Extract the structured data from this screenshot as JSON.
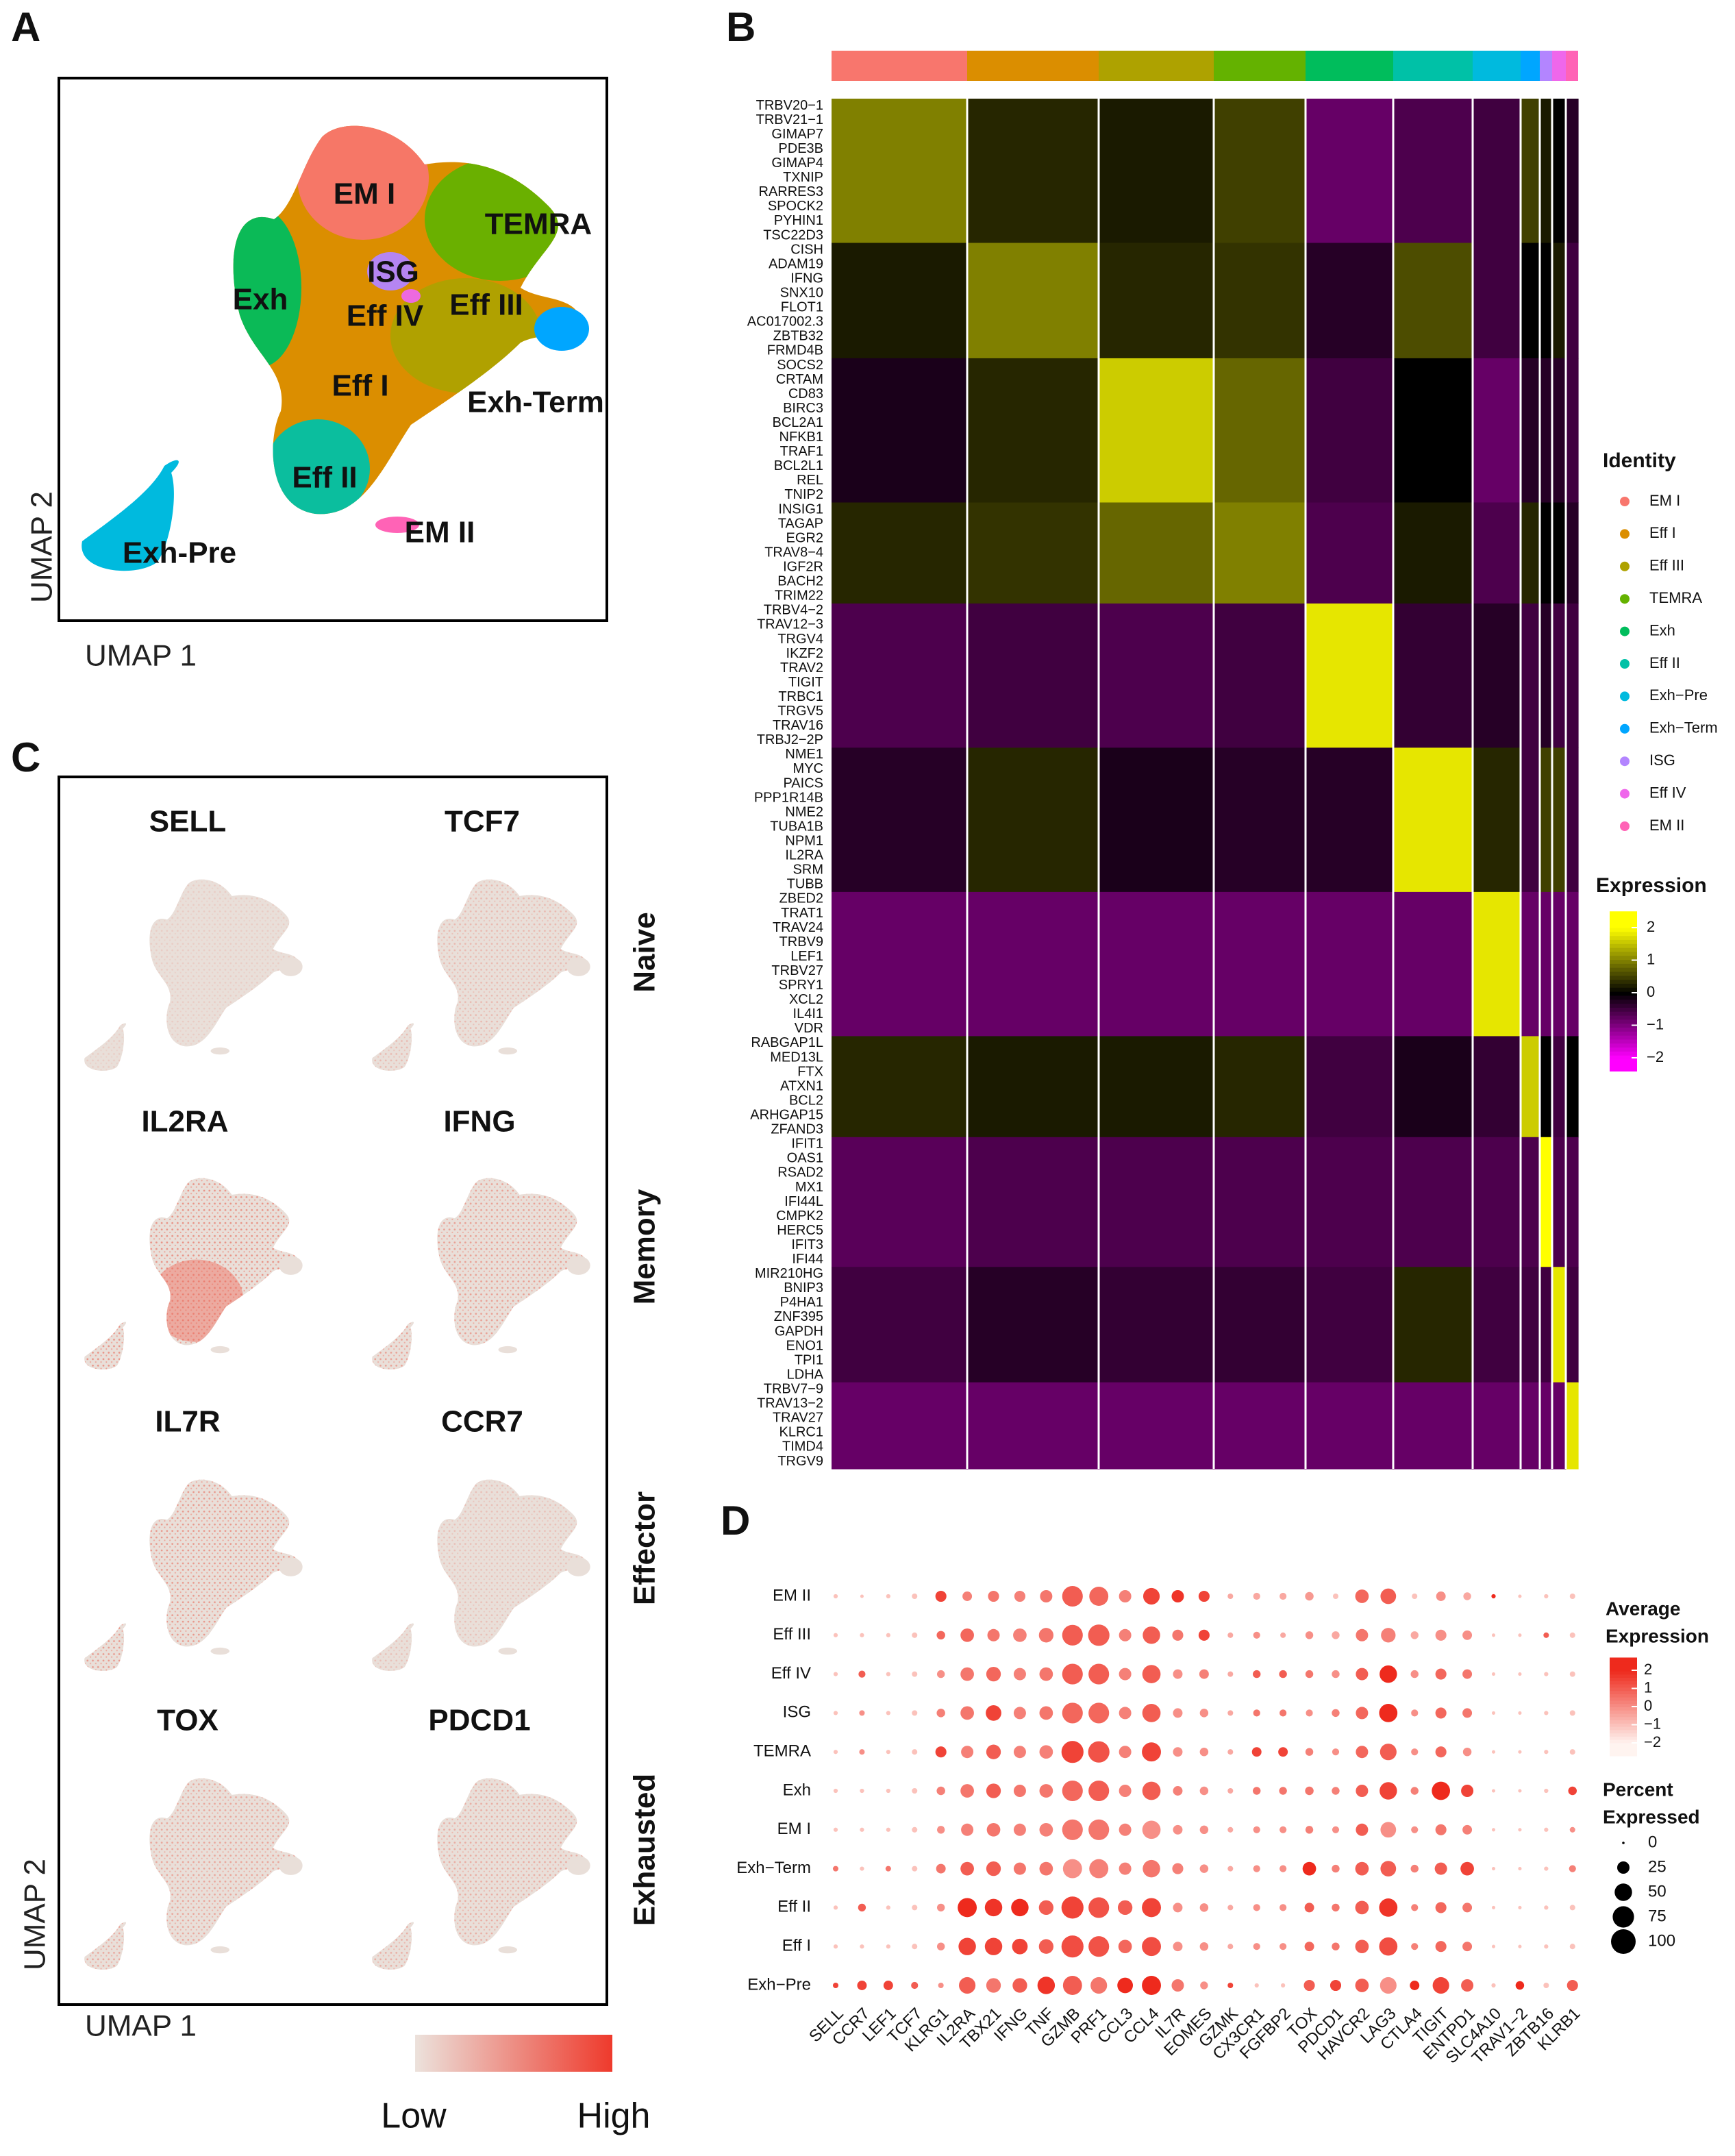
{
  "panels": [
    "A",
    "B",
    "C",
    "D"
  ],
  "umap": {
    "clusters": [
      "EM I",
      "TEMRA",
      "ISG",
      "Exh",
      "Eff IV",
      "Eff III",
      "Eff I",
      "Exh-Term",
      "Eff II",
      "EM II",
      "Exh-Pre"
    ],
    "x_label": "UMAP 1",
    "y_label": "UMAP 2"
  },
  "heatmap": {
    "clusters": [
      "EM I",
      "Eff I",
      "Eff III",
      "TEMRA",
      "Exh",
      "Eff II",
      "Exh−Pre",
      "Exh−Term",
      "ISG",
      "Eff IV",
      "EM II"
    ],
    "colors": [
      "#F8766D",
      "#DB8E00",
      "#AEA200",
      "#64B200",
      "#00BD5C",
      "#00C1A7",
      "#00BADE",
      "#00A6FF",
      "#B385FF",
      "#EF67EB",
      "#FF63B6"
    ],
    "cells": [
      99,
      96,
      84,
      67,
      64,
      58,
      35,
      14,
      9,
      10,
      9
    ],
    "gene_groups": [
      [
        "TRBV20−1",
        "TRBV21−1",
        "GIMAP7",
        "PDE3B",
        "GIMAP4",
        "TXNIP",
        "RARRES3",
        "SPOCK2",
        "PYHIN1",
        "TSC22D3"
      ],
      [
        "CISH",
        "ADAM19",
        "IFNG",
        "SNX10",
        "FLOT1",
        "AC017002.3",
        "ZBTB32",
        "FRMD4B"
      ],
      [
        "SOCS2",
        "CRTAM",
        "CD83",
        "BIRC3",
        "BCL2A1",
        "NFKB1",
        "TRAF1",
        "BCL2L1",
        "REL",
        "TNIP2"
      ],
      [
        "INSIG1",
        "TAGAP",
        "EGR2",
        "TRAV8−4",
        "IGF2R",
        "BACH2",
        "TRIM22"
      ],
      [
        "TRBV4−2",
        "TRAV12−3",
        "TRGV4",
        "IKZF2",
        "TRAV2",
        "TIGIT",
        "TRBC1",
        "TRGV5",
        "TRAV16",
        "TRBJ2−2P"
      ],
      [
        "NME1",
        "MYC",
        "PAICS",
        "PPP1R14B",
        "NME2",
        "TUBA1B",
        "NPM1",
        "IL2RA",
        "SRM",
        "TUBB"
      ],
      [
        "ZBED2",
        "TRAT1",
        "TRAV24",
        "TRBV9",
        "LEF1",
        "TRBV27",
        "SPRY1",
        "XCL2",
        "IL4I1",
        "VDR"
      ],
      [
        "RABGAP1L",
        "MED13L",
        "FTX",
        "ATXN1",
        "BCL2",
        "ARHGAP15",
        "ZFAND3"
      ],
      [
        "IFIT1",
        "OAS1",
        "RSAD2",
        "MX1",
        "IFI44L",
        "CMPK2",
        "HERC5",
        "IFIT3",
        "IFI44"
      ],
      [
        "MIR210HG",
        "BNIP3",
        "P4HA1",
        "ZNF395",
        "GAPDH",
        "ENO1",
        "TPI1",
        "LDHA"
      ],
      [
        "TRBV7−9",
        "TRAV13−2",
        "TRAV27",
        "KLRC1",
        "TIMD4",
        "TRGV9"
      ]
    ],
    "expression": [
      [
        1.0,
        0.3,
        0.2,
        0.5,
        -0.8,
        -0.6,
        -0.5,
        0.5,
        0.2,
        0,
        -0.3
      ],
      [
        0.2,
        1.0,
        0.3,
        0.4,
        -0.3,
        0.6,
        -0.5,
        0,
        0,
        0.2,
        -0.5
      ],
      [
        -0.2,
        0.3,
        1.6,
        0.8,
        -0.5,
        0,
        -0.8,
        -0.3,
        -0.3,
        -0.3,
        -0.5
      ],
      [
        0.3,
        0.4,
        0.8,
        1.0,
        -0.6,
        0.2,
        -0.6,
        0.3,
        0,
        0,
        -0.3
      ],
      [
        -0.6,
        -0.5,
        -0.6,
        -0.5,
        1.8,
        -0.4,
        -0.3,
        -0.5,
        -0.3,
        -0.5,
        -0.5
      ],
      [
        -0.3,
        0.3,
        -0.2,
        -0.3,
        -0.3,
        1.8,
        0.3,
        -0.5,
        0.5,
        0.5,
        -0.5
      ],
      [
        -0.8,
        -0.8,
        -0.8,
        -0.8,
        -0.8,
        -0.8,
        1.8,
        -0.8,
        -0.8,
        -0.8,
        -0.8
      ],
      [
        0.3,
        0.2,
        0.2,
        0.3,
        -0.5,
        -0.2,
        -0.4,
        1.6,
        0,
        -0.5,
        0
      ],
      [
        -0.7,
        -0.6,
        -0.6,
        -0.6,
        -0.6,
        -0.6,
        -0.6,
        -0.6,
        2,
        -0.6,
        -0.6
      ],
      [
        -0.5,
        -0.3,
        -0.4,
        -0.4,
        -0.5,
        0.3,
        -0.5,
        -0.5,
        -0.5,
        1.8,
        -0.5
      ],
      [
        -0.8,
        -0.8,
        -0.8,
        -0.8,
        -0.8,
        -0.8,
        -0.8,
        -0.8,
        -0.8,
        -0.8,
        1.8
      ]
    ],
    "legend_title": "Identity",
    "scale_title": "Expression",
    "scale_lim": [
      -2.4,
      2.5
    ],
    "scale_ticks": [
      2,
      1,
      0,
      {
        "value": -1,
        "label": "−1"
      },
      {
        "value": -2,
        "label": "−2"
      }
    ]
  },
  "features": {
    "genes": [
      "SELL",
      "TCF7",
      "IL2RA",
      "IFNG",
      "IL7R",
      "CCR7",
      "TOX",
      "PDCD1"
    ],
    "categories": [
      "Naive",
      "Memory",
      "Effector",
      "Exhausted"
    ],
    "x_label": "UMAP 1",
    "y_label": "UMAP 2",
    "scale_low": "Low",
    "scale_high": "High"
  },
  "dotplot": {
    "rows": [
      "EM II",
      "Eff III",
      "Eff IV",
      "ISG",
      "TEMRA",
      "Exh",
      "EM I",
      "Exh−Term",
      "Eff II",
      "Eff I",
      "Exh−Pre"
    ],
    "columns": [
      "SELL",
      "CCR7",
      "LEF1",
      "TCF7",
      "KLRG1",
      "IL2RA",
      "TBX21",
      "IFNG",
      "TNF",
      "GZMB",
      "PRF1",
      "CCL3",
      "CCL4",
      "IL7R",
      "EOMES",
      "GZMK",
      "CX3CR1",
      "FGFBP2",
      "TOX",
      "PDCD1",
      "HAVCR2",
      "LAG3",
      "CTLA4",
      "TIGIT",
      "ENTPD1",
      "SLC4A10",
      "TRAV1−2",
      "ZBTB16",
      "KLRB1"
    ],
    "avg_expression": [
      [
        -1,
        -1,
        -1,
        -1,
        1.5,
        0.3,
        0.5,
        0.3,
        0.5,
        1,
        0.8,
        0.3,
        1.5,
        1.8,
        1.5,
        -0.5,
        -0.5,
        -0.5,
        -0.2,
        -1,
        0.8,
        1,
        -1,
        0,
        -0.5,
        2,
        -1,
        -1,
        -1
      ],
      [
        -1,
        -1,
        -1,
        -1,
        0.8,
        0.8,
        0.5,
        0.3,
        0.5,
        1,
        1,
        0.3,
        1,
        0.5,
        1.5,
        -0.5,
        0,
        -0.5,
        0,
        -0.5,
        0.5,
        0.3,
        -0.5,
        0,
        0,
        -1,
        -1,
        1,
        -1
      ],
      [
        -1,
        1,
        -1,
        -1,
        0,
        0.5,
        0.8,
        0.3,
        0.5,
        1,
        1,
        0.3,
        1,
        0,
        0.3,
        -0.5,
        1,
        1,
        0.5,
        0,
        1,
        2,
        0,
        0.8,
        0.5,
        -1,
        -1,
        -1,
        -1
      ],
      [
        -1,
        0,
        -1,
        -1,
        0.3,
        0.5,
        1.5,
        0.3,
        0.5,
        0.8,
        0.8,
        0.3,
        1,
        0,
        0,
        -0.5,
        0.5,
        0.5,
        0,
        0.3,
        0.8,
        2,
        0,
        0.8,
        0.5,
        -1,
        -1,
        -1,
        -1
      ],
      [
        -1,
        0,
        -1,
        -1,
        1.5,
        0.3,
        1,
        0.3,
        0.3,
        1.5,
        1.2,
        0.3,
        1.5,
        0,
        0,
        -0.5,
        1.5,
        1.5,
        0.3,
        0,
        0.8,
        1,
        0,
        0.8,
        0,
        -1,
        -1,
        -1,
        -1
      ],
      [
        -1,
        -1,
        -1,
        -1,
        0.3,
        0.5,
        1,
        0.5,
        0.5,
        0.8,
        1,
        0.3,
        1,
        0.3,
        0,
        -0.5,
        0.5,
        0.5,
        0.5,
        0.3,
        1,
        1.5,
        0.3,
        2,
        1.5,
        -1,
        -1,
        -1,
        1.5
      ],
      [
        -1,
        -1,
        -1,
        -1,
        0,
        0.3,
        0.5,
        0.3,
        0.3,
        0.5,
        0.5,
        0.3,
        0,
        0,
        0,
        -0.5,
        0,
        0,
        0.3,
        0,
        1,
        0,
        0,
        0.5,
        0.3,
        -1,
        -1,
        -1,
        0
      ],
      [
        0.5,
        -1,
        0.5,
        -1,
        0.5,
        1,
        1,
        0.5,
        0.5,
        0,
        0.3,
        0.3,
        0.5,
        0.3,
        0,
        -0.5,
        0,
        0,
        2,
        0.3,
        1,
        1,
        0.3,
        1,
        1.5,
        -1,
        -1,
        -1,
        0.3
      ],
      [
        -1,
        1,
        -1,
        -1,
        0,
        2,
        1.8,
        2,
        1,
        1.5,
        1.2,
        1,
        1.5,
        0,
        0,
        -0.5,
        0,
        0,
        1,
        0.5,
        1,
        1.8,
        0.3,
        0.8,
        0.5,
        -1,
        -1,
        -1,
        -1
      ],
      [
        -1,
        -1,
        -1,
        -1,
        0,
        1.5,
        1.5,
        1.5,
        1,
        1.3,
        1.2,
        0.8,
        1.3,
        0,
        0,
        -0.5,
        0,
        0,
        0.8,
        0.5,
        1,
        1.3,
        0.3,
        0.8,
        0.5,
        -1,
        -1,
        -1,
        -1
      ],
      [
        1.5,
        1.5,
        1.5,
        1,
        0,
        1,
        0.5,
        1,
        1.8,
        1,
        0.5,
        2,
        2,
        0.5,
        0,
        1.5,
        -1,
        -1,
        1,
        1.5,
        1,
        0,
        2,
        1.5,
        1,
        -1,
        2,
        -1,
        1
      ]
    ],
    "percent": [
      [
        3,
        2,
        3,
        5,
        20,
        15,
        20,
        20,
        25,
        70,
        60,
        25,
        45,
        25,
        20,
        5,
        8,
        8,
        12,
        5,
        30,
        40,
        5,
        15,
        10,
        3,
        2,
        3,
        5
      ],
      [
        3,
        3,
        3,
        5,
        12,
        30,
        25,
        30,
        35,
        70,
        75,
        25,
        50,
        20,
        20,
        5,
        8,
        5,
        10,
        10,
        25,
        35,
        10,
        20,
        15,
        2,
        2,
        5,
        5
      ],
      [
        3,
        8,
        3,
        5,
        10,
        30,
        35,
        25,
        30,
        70,
        70,
        25,
        55,
        15,
        15,
        5,
        10,
        10,
        10,
        10,
        25,
        50,
        10,
        20,
        15,
        2,
        2,
        3,
        5
      ],
      [
        3,
        5,
        3,
        5,
        12,
        30,
        40,
        25,
        30,
        70,
        70,
        25,
        55,
        15,
        12,
        5,
        8,
        8,
        8,
        10,
        25,
        55,
        8,
        20,
        15,
        2,
        2,
        3,
        5
      ],
      [
        3,
        5,
        3,
        5,
        20,
        25,
        35,
        25,
        30,
        80,
        75,
        25,
        60,
        15,
        12,
        5,
        15,
        15,
        10,
        8,
        25,
        45,
        8,
        20,
        12,
        2,
        2,
        3,
        5
      ],
      [
        3,
        3,
        3,
        5,
        12,
        30,
        35,
        25,
        30,
        70,
        70,
        25,
        55,
        15,
        12,
        5,
        10,
        10,
        12,
        10,
        25,
        50,
        10,
        55,
        25,
        2,
        2,
        3,
        12
      ],
      [
        3,
        3,
        3,
        5,
        10,
        25,
        30,
        25,
        30,
        70,
        70,
        25,
        55,
        15,
        12,
        5,
        8,
        8,
        10,
        8,
        25,
        40,
        8,
        20,
        15,
        2,
        2,
        3,
        5
      ],
      [
        5,
        3,
        5,
        5,
        15,
        30,
        35,
        25,
        30,
        60,
        60,
        25,
        50,
        20,
        12,
        5,
        8,
        8,
        30,
        10,
        30,
        40,
        10,
        25,
        30,
        2,
        2,
        3,
        8
      ],
      [
        3,
        10,
        3,
        5,
        10,
        60,
        50,
        50,
        35,
        80,
        70,
        35,
        60,
        15,
        12,
        5,
        8,
        8,
        15,
        10,
        30,
        55,
        8,
        20,
        15,
        2,
        2,
        3,
        5
      ],
      [
        3,
        3,
        3,
        5,
        10,
        50,
        50,
        40,
        35,
        80,
        70,
        30,
        60,
        15,
        12,
        5,
        8,
        8,
        15,
        10,
        30,
        55,
        8,
        20,
        15,
        2,
        2,
        3,
        5
      ],
      [
        5,
        15,
        15,
        8,
        5,
        45,
        35,
        35,
        50,
        60,
        45,
        40,
        60,
        25,
        10,
        5,
        3,
        3,
        20,
        20,
        30,
        45,
        15,
        45,
        25,
        3,
        12,
        5,
        20
      ]
    ],
    "color_title": [
      "Average",
      "Expression"
    ],
    "color_lim": [
      -2.7,
      2.7
    ],
    "color_ticks": [
      2,
      1,
      0,
      {
        "value": -1,
        "label": "−1"
      },
      {
        "value": -2,
        "label": "−2"
      }
    ],
    "size_title": [
      "Percent",
      "Expressed"
    ],
    "size_ticks": [
      0,
      25,
      50,
      75,
      100
    ]
  }
}
